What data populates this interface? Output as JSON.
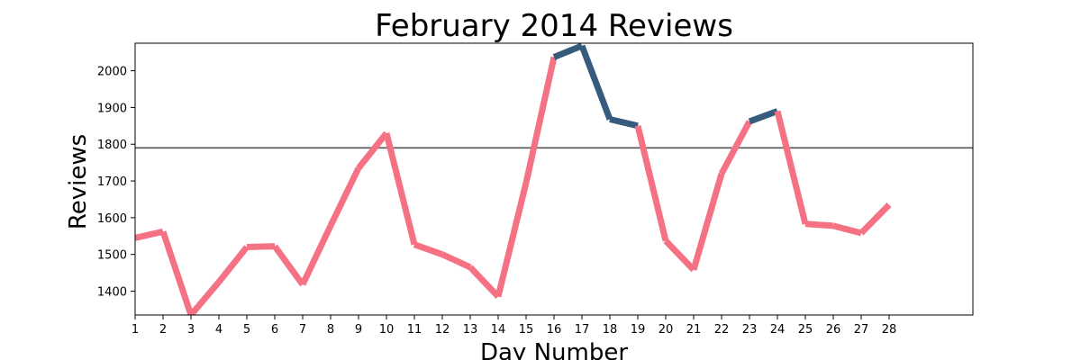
{
  "chart_data": {
    "type": "line",
    "title": "February 2014 Reviews",
    "xlabel": "Day Number",
    "ylabel": "Reviews",
    "xlim": [
      1,
      31
    ],
    "ylim": [
      1335,
      2075
    ],
    "xticks": [
      1,
      2,
      3,
      4,
      5,
      6,
      7,
      8,
      9,
      10,
      11,
      12,
      13,
      14,
      15,
      16,
      17,
      18,
      19,
      20,
      21,
      22,
      23,
      24,
      25,
      26,
      27,
      28
    ],
    "yticks": [
      1400,
      1500,
      1600,
      1700,
      1800,
      1900,
      2000
    ],
    "grid": false,
    "reference_line": {
      "y": 1790
    },
    "colors": {
      "above": "#365b7d",
      "below": "#f47283",
      "reference": "#555555"
    },
    "x": [
      1,
      2,
      3,
      4,
      5,
      6,
      7,
      8,
      9,
      10,
      11,
      12,
      13,
      14,
      15,
      16,
      17,
      18,
      19,
      20,
      21,
      22,
      23,
      24,
      25,
      26,
      27,
      28
    ],
    "y": [
      1545,
      1562,
      1335,
      1425,
      1520,
      1522,
      1418,
      1578,
      1735,
      1830,
      1527,
      1500,
      1465,
      1385,
      1695,
      2037,
      2068,
      1868,
      1850,
      1537,
      1458,
      1720,
      1862,
      1890,
      1583,
      1578,
      1558,
      1635
    ]
  }
}
